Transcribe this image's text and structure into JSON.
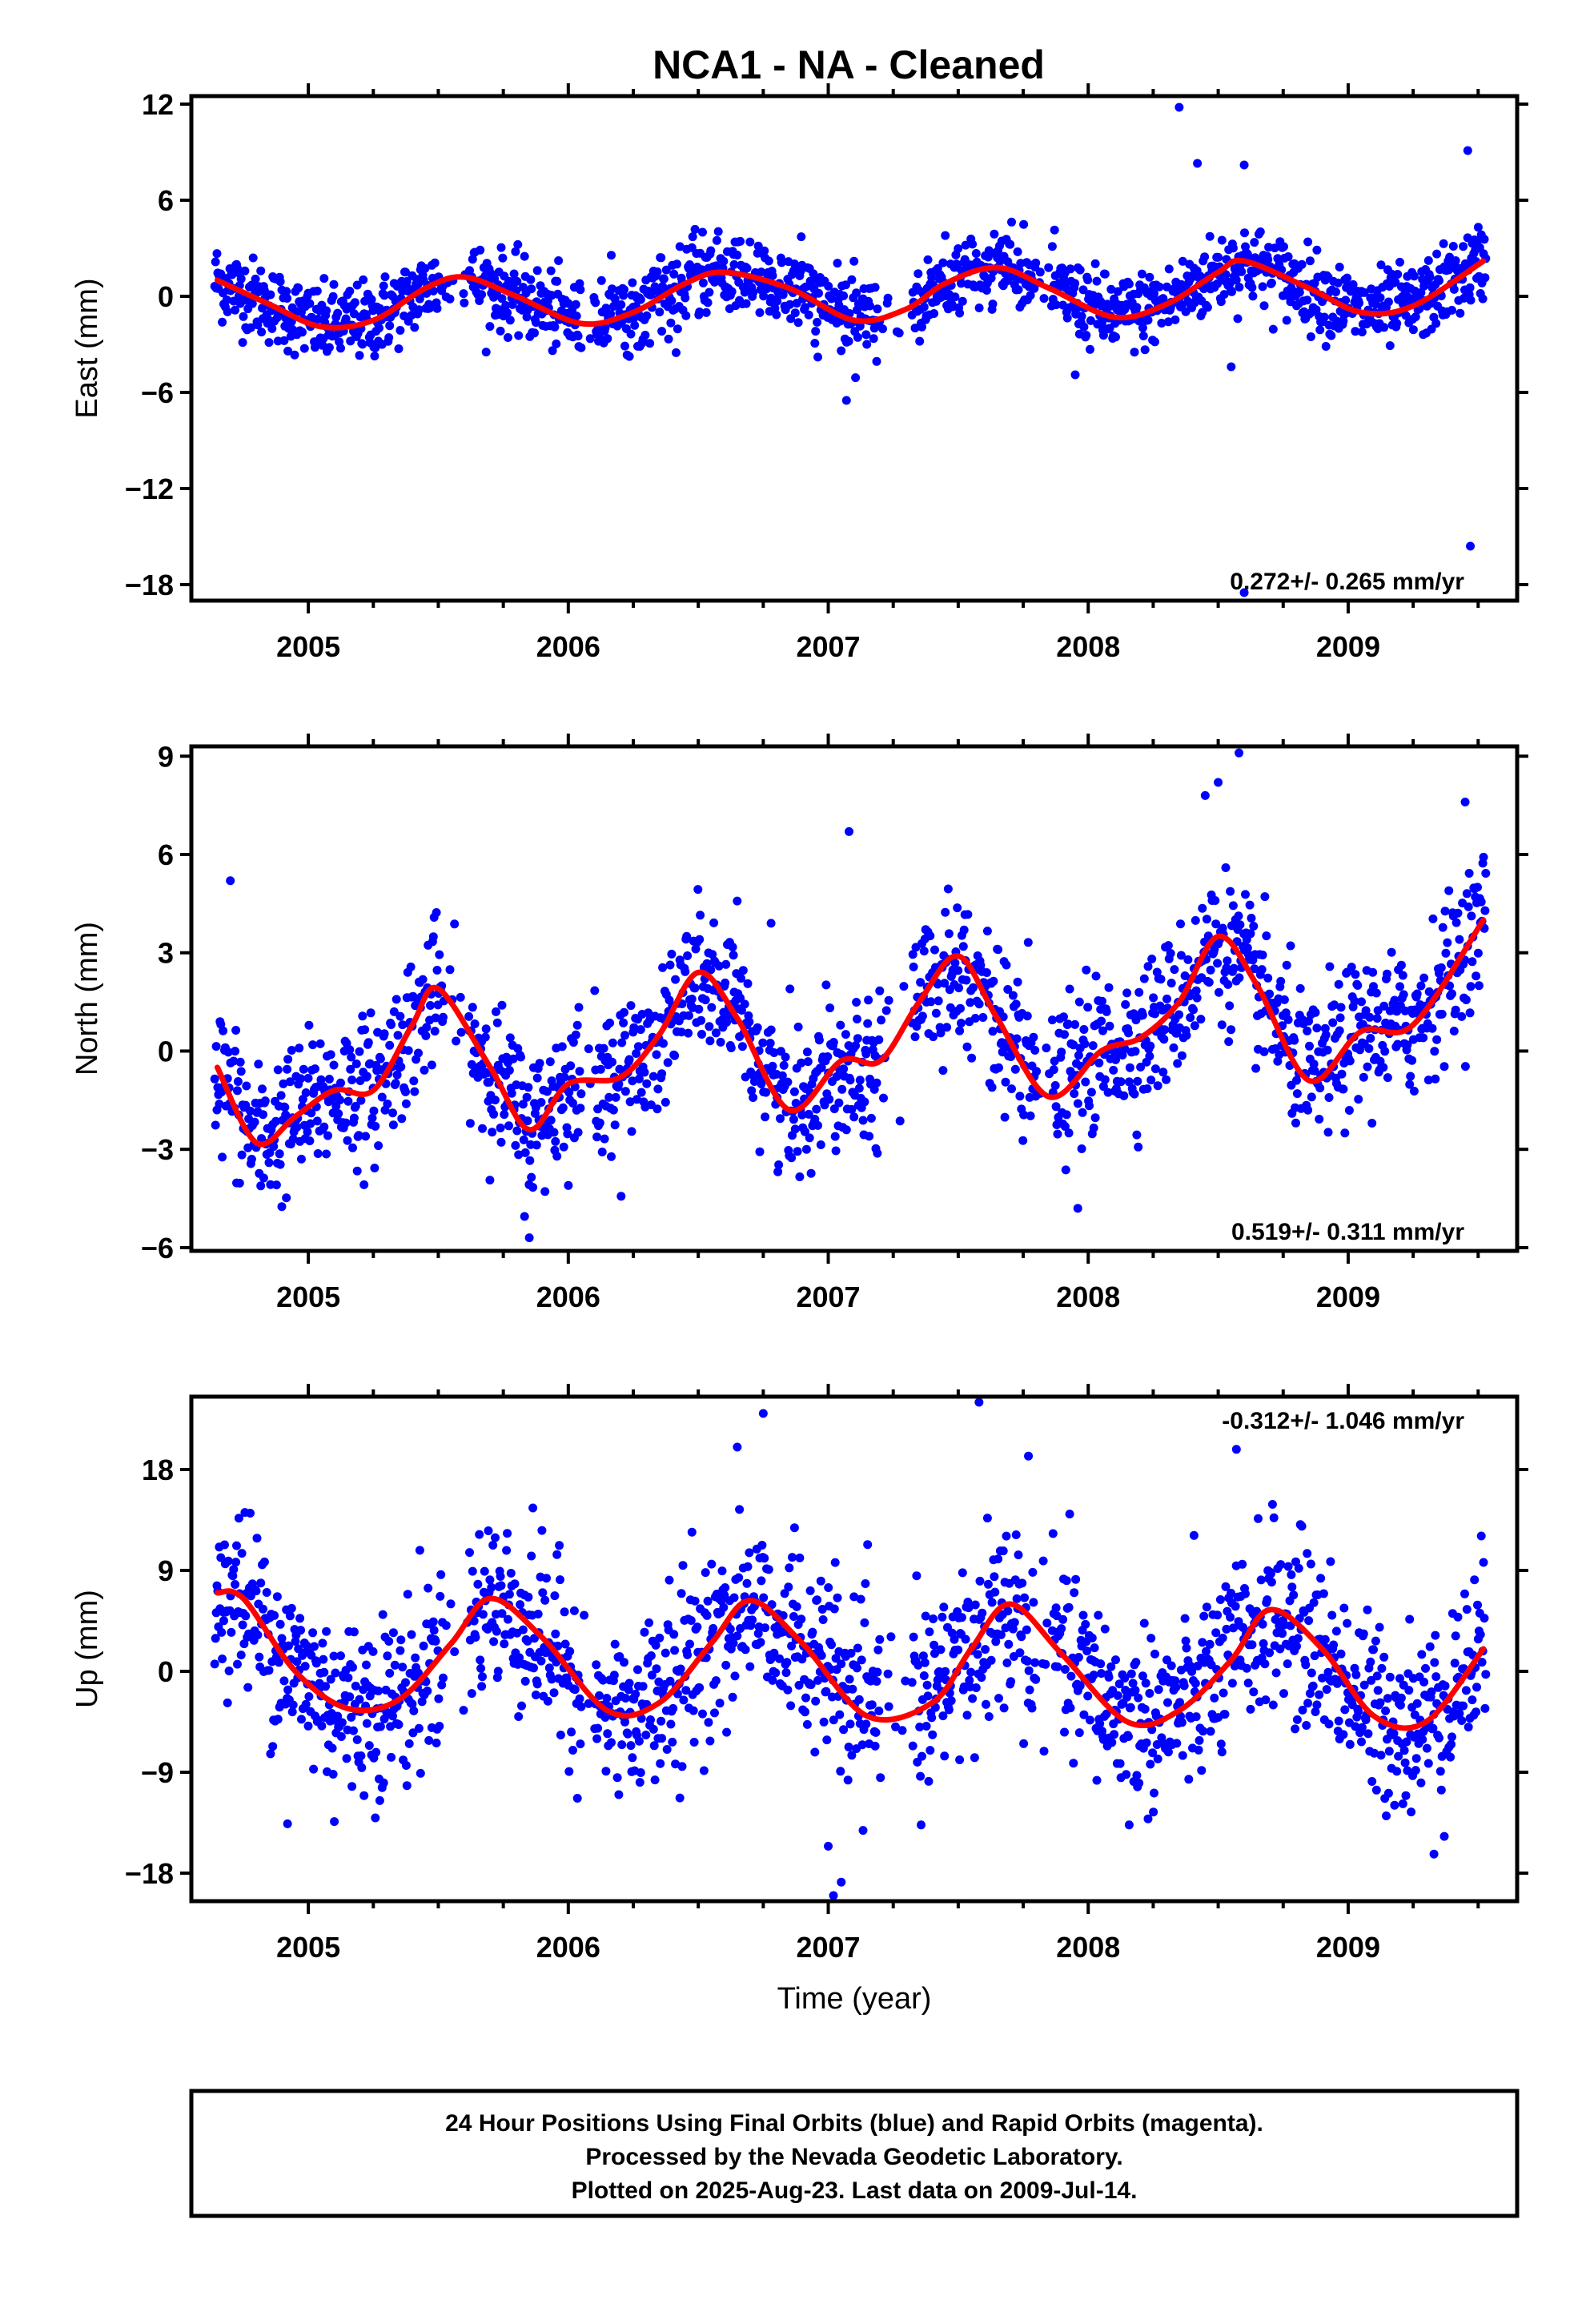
{
  "title": "NCA1  - NA - Cleaned",
  "colors": {
    "final_orbits": "#0000ff",
    "fit_curve": "#ff0000",
    "frame": "#000000"
  },
  "chart_data": [
    {
      "type": "scatter",
      "ylabel": "East (mm)",
      "xlim": [
        2004.55,
        2009.65
      ],
      "ylim": [
        -19,
        12.5
      ],
      "yticks": [
        12,
        6,
        0,
        -6,
        -12,
        -18
      ],
      "ytick_labels": [
        "12",
        "6",
        "0",
        "−6",
        "−12",
        "−18"
      ],
      "xticks": [
        2005,
        2006,
        2007,
        2008,
        2009
      ],
      "xtick_labels": [
        "2005",
        "2006",
        "2007",
        "2008",
        "2009"
      ],
      "rate_text": "0.272+/- 0.265 mm/yr",
      "rate_position": "bottom-right",
      "series": [
        {
          "kind": "fit",
          "x": [
            2004.65,
            2004.85,
            2005.05,
            2005.25,
            2005.45,
            2005.6,
            2005.8,
            2006.05,
            2006.25,
            2006.45,
            2006.6,
            2006.85,
            2007.1,
            2007.3,
            2007.45,
            2007.65,
            2007.85,
            2008.1,
            2008.3,
            2008.5,
            2008.6,
            2008.85,
            2009.05,
            2009.25,
            2009.52
          ],
          "y": [
            1.0,
            -0.5,
            -1.9,
            -1.5,
            0.5,
            1.2,
            0.0,
            -1.7,
            -1.0,
            0.8,
            1.5,
            0.5,
            -1.5,
            -0.8,
            0.8,
            1.8,
            0.5,
            -1.3,
            -0.5,
            1.5,
            2.2,
            0.5,
            -1.0,
            -0.6,
            2.2
          ]
        }
      ],
      "outliers": [
        {
          "x": 2008.35,
          "y": 11.8
        },
        {
          "x": 2008.42,
          "y": 8.3
        },
        {
          "x": 2008.6,
          "y": 8.2
        },
        {
          "x": 2009.46,
          "y": 9.1
        },
        {
          "x": 2009.47,
          "y": -15.6
        },
        {
          "x": 2007.07,
          "y": -6.5
        },
        {
          "x": 2007.95,
          "y": -4.9
        },
        {
          "x": 2008.55,
          "y": -4.4
        },
        {
          "x": 2008.6,
          "y": -18.5
        }
      ]
    },
    {
      "type": "scatter",
      "ylabel": "North (mm)",
      "xlim": [
        2004.55,
        2009.65
      ],
      "ylim": [
        -6.1,
        9.3
      ],
      "yticks": [
        9,
        6,
        3,
        0,
        -3,
        -6
      ],
      "ytick_labels": [
        "9",
        "6",
        "3",
        "0",
        "−3",
        "−6"
      ],
      "xticks": [
        2005,
        2006,
        2007,
        2008,
        2009
      ],
      "xtick_labels": [
        "2005",
        "2006",
        "2007",
        "2008",
        "2009"
      ],
      "rate_text": "0.519+/- 0.311 mm/yr",
      "rate_position": "bottom-right",
      "series": [
        {
          "kind": "fit",
          "x": [
            2004.65,
            2004.8,
            2004.95,
            2005.1,
            2005.25,
            2005.4,
            2005.5,
            2005.7,
            2005.85,
            2006.0,
            2006.2,
            2006.35,
            2006.5,
            2006.65,
            2006.85,
            2007.05,
            2007.2,
            2007.35,
            2007.5,
            2007.65,
            2007.85,
            2008.05,
            2008.2,
            2008.35,
            2008.5,
            2008.65,
            2008.85,
            2009.05,
            2009.25,
            2009.52
          ],
          "y": [
            -0.5,
            -2.8,
            -2.0,
            -1.2,
            -1.2,
            0.8,
            1.9,
            -0.5,
            -2.4,
            -1.0,
            -0.8,
            0.5,
            2.4,
            1.0,
            -1.8,
            -0.3,
            -0.3,
            1.5,
            2.9,
            1.0,
            -1.4,
            0.0,
            0.4,
            1.5,
            3.5,
            2.0,
            -0.9,
            0.6,
            0.8,
            4.0
          ]
        }
      ],
      "outliers": [
        {
          "x": 2004.7,
          "y": 5.2
        },
        {
          "x": 2007.08,
          "y": 6.7
        },
        {
          "x": 2008.58,
          "y": 9.1
        },
        {
          "x": 2008.5,
          "y": 8.2
        },
        {
          "x": 2008.45,
          "y": 7.8
        },
        {
          "x": 2009.45,
          "y": 7.6
        },
        {
          "x": 2006.78,
          "y": 3.9
        },
        {
          "x": 2007.96,
          "y": -4.8
        },
        {
          "x": 2005.85,
          "y": -5.7
        }
      ]
    },
    {
      "type": "scatter",
      "ylabel": "Up (mm)",
      "xlabel": "Time (year)",
      "xlim": [
        2004.55,
        2009.65
      ],
      "ylim": [
        -20.5,
        24.5
      ],
      "yticks": [
        18,
        9,
        0,
        -9,
        -18
      ],
      "ytick_labels": [
        "18",
        "9",
        "0",
        "−9",
        "−18"
      ],
      "xticks": [
        2005,
        2006,
        2007,
        2008,
        2009
      ],
      "xtick_labels": [
        "2005",
        "2006",
        "2007",
        "2008",
        "2009"
      ],
      "rate_text": "-0.312+/- 1.046 mm/yr",
      "rate_position": "top-right",
      "series": [
        {
          "kind": "fit",
          "x": [
            2004.65,
            2004.75,
            2004.95,
            2005.15,
            2005.35,
            2005.55,
            2005.7,
            2005.9,
            2006.15,
            2006.35,
            2006.55,
            2006.7,
            2006.9,
            2007.15,
            2007.4,
            2007.55,
            2007.7,
            2007.9,
            2008.15,
            2008.35,
            2008.55,
            2008.7,
            2008.9,
            2009.1,
            2009.3,
            2009.52
          ],
          "y": [
            7.0,
            6.5,
            0.0,
            -3.3,
            -2.5,
            2.5,
            6.5,
            3.0,
            -3.5,
            -2.8,
            2.5,
            6.3,
            2.5,
            -4.0,
            -2.8,
            2.0,
            6.0,
            1.5,
            -4.5,
            -3.5,
            1.0,
            5.5,
            2.0,
            -4.0,
            -4.5,
            2.0
          ]
        }
      ],
      "outliers": [
        {
          "x": 2006.75,
          "y": 23.0
        },
        {
          "x": 2007.58,
          "y": 24.0
        },
        {
          "x": 2008.57,
          "y": 19.8
        },
        {
          "x": 2006.65,
          "y": 20.0
        },
        {
          "x": 2007.77,
          "y": 19.2
        },
        {
          "x": 2007.02,
          "y": -20.0
        },
        {
          "x": 2007.05,
          "y": -18.8
        },
        {
          "x": 2007.0,
          "y": -15.6
        },
        {
          "x": 2009.33,
          "y": -16.3
        },
        {
          "x": 2004.92,
          "y": -13.6
        },
        {
          "x": 2005.1,
          "y": -13.4
        }
      ]
    }
  ],
  "footer": {
    "line1": "24 Hour Positions Using Final Orbits (blue) and Rapid Orbits (magenta).",
    "line2": "Processed by the Nevada Geodetic Laboratory.",
    "line3": "Plotted on 2025-Aug-23. Last data on 2009-Jul-14."
  }
}
